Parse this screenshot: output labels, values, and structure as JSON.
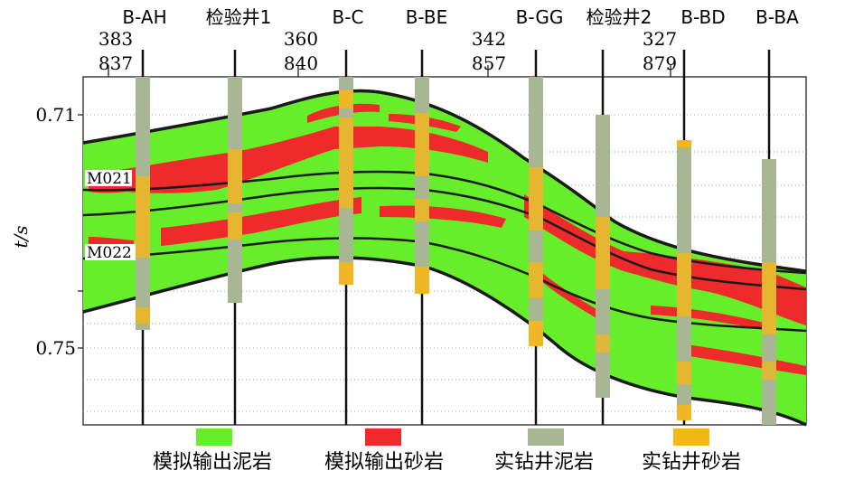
{
  "axis": {
    "ylabel": "t/s",
    "ticks": [
      {
        "label": "0.71",
        "value": 0.71
      },
      {
        "label": "0.75",
        "value": 0.75
      }
    ]
  },
  "wells": [
    {
      "name": "B-AH"
    },
    {
      "name": "检验井1"
    },
    {
      "name": "B-C"
    },
    {
      "name": "B-BE"
    },
    {
      "name": "B-GG"
    },
    {
      "name": "检验井2"
    },
    {
      "name": "B-BD"
    },
    {
      "name": "B-BA"
    }
  ],
  "cdp_labels": [
    {
      "top": "383",
      "bottom": "837"
    },
    {
      "top": "360",
      "bottom": "840"
    },
    {
      "top": "342",
      "bottom": "857"
    },
    {
      "top": "327",
      "bottom": "879"
    }
  ],
  "horizons": [
    {
      "label": "M021"
    },
    {
      "label": "M022"
    }
  ],
  "legend": [
    {
      "label": "模拟输出泥岩",
      "color": "#66ee2a"
    },
    {
      "label": "模拟输出砂岩",
      "color": "#ee2a2a"
    },
    {
      "label": "实钻井泥岩",
      "color": "#a9b694"
    },
    {
      "label": "实钻井砂岩",
      "color": "#f5b716"
    }
  ],
  "colors": {
    "mudstone": "#66ee2a",
    "sandstone": "#ee2a2a",
    "well_mud": "#a9b694",
    "well_sand": "#f5b716",
    "boundary": "#1a1a1a",
    "gridline": "#9aa0a8"
  }
}
